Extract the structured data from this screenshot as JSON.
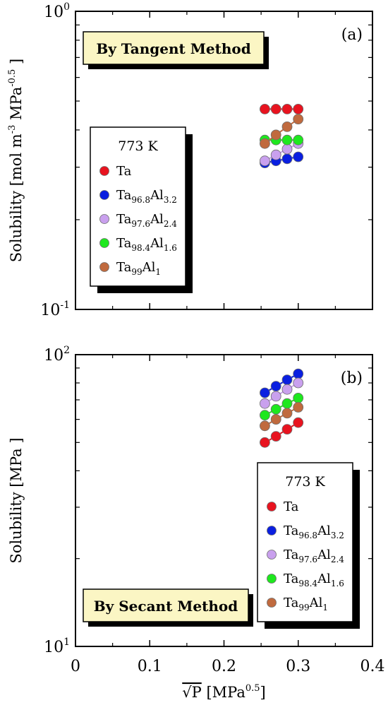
{
  "chart_data": [
    {
      "panel": "(a)",
      "type": "scatter",
      "method_label": "By Tangent Method",
      "ylabel": "Solubility [mol m^-3 MPa^-0.5]",
      "ylabel_parts": {
        "main": "Solubility [mol m",
        "sup1": "-3",
        "mid": " MPa",
        "sup2": "-0.5",
        "end": " ]"
      },
      "ylim": [
        0.1,
        1.0
      ],
      "yscale": "log",
      "y_ticks": [
        {
          "base": "10",
          "exp": "-1"
        },
        {
          "base": "10",
          "exp": "0"
        }
      ],
      "legend_title": "773 K",
      "legend_position": "middle-left",
      "series": [
        {
          "name": "Ta",
          "name_parts": [
            {
              "t": "Ta"
            }
          ],
          "color": "#e8131f",
          "x": [
            0.255,
            0.27,
            0.285,
            0.3
          ],
          "values": [
            0.47,
            0.47,
            0.47,
            0.47
          ]
        },
        {
          "name": "Ta96.8Al3.2",
          "name_parts": [
            {
              "t": "Ta"
            },
            {
              "sub": "96.8"
            },
            {
              "t": "Al"
            },
            {
              "sub": "3.2"
            }
          ],
          "color": "#0a1fe0",
          "x": [
            0.255,
            0.27,
            0.285,
            0.3
          ],
          "values": [
            0.31,
            0.315,
            0.32,
            0.325
          ]
        },
        {
          "name": "Ta97.6Al2.4",
          "name_parts": [
            {
              "t": "Ta"
            },
            {
              "sub": "97.6"
            },
            {
              "t": "Al"
            },
            {
              "sub": "2.4"
            }
          ],
          "color": "#c9a0ee",
          "x": [
            0.255,
            0.27,
            0.285,
            0.3
          ],
          "values": [
            0.315,
            0.33,
            0.345,
            0.36
          ]
        },
        {
          "name": "Ta98.4Al1.6",
          "name_parts": [
            {
              "t": "Ta"
            },
            {
              "sub": "98.4"
            },
            {
              "t": "Al"
            },
            {
              "sub": "1.6"
            }
          ],
          "color": "#1ee81e",
          "x": [
            0.255,
            0.27,
            0.285,
            0.3
          ],
          "values": [
            0.37,
            0.37,
            0.37,
            0.37
          ]
        },
        {
          "name": "Ta99Al1",
          "name_parts": [
            {
              "t": "Ta"
            },
            {
              "sub": "99"
            },
            {
              "t": "Al"
            },
            {
              "sub": "1"
            }
          ],
          "color": "#c06a3e",
          "x": [
            0.255,
            0.27,
            0.285,
            0.3
          ],
          "values": [
            0.36,
            0.385,
            0.41,
            0.435
          ]
        }
      ]
    },
    {
      "panel": "(b)",
      "type": "scatter",
      "method_label": "By Secant Method",
      "ylabel": "Solubility [MPa ]",
      "ylim": [
        10,
        100
      ],
      "yscale": "log",
      "y_ticks": [
        {
          "base": "10",
          "exp": "1"
        },
        {
          "base": "10",
          "exp": "2"
        }
      ],
      "legend_title": "773 K",
      "legend_position": "bottom-right",
      "series": [
        {
          "name": "Ta",
          "name_parts": [
            {
              "t": "Ta"
            }
          ],
          "color": "#e8131f",
          "x": [
            0.255,
            0.27,
            0.285,
            0.3
          ],
          "values": [
            50,
            52.5,
            55.5,
            58.5
          ]
        },
        {
          "name": "Ta96.8Al3.2",
          "name_parts": [
            {
              "t": "Ta"
            },
            {
              "sub": "96.8"
            },
            {
              "t": "Al"
            },
            {
              "sub": "3.2"
            }
          ],
          "color": "#0a1fe0",
          "x": [
            0.255,
            0.27,
            0.285,
            0.3
          ],
          "values": [
            74,
            78,
            82,
            86
          ]
        },
        {
          "name": "Ta97.6Al2.4",
          "name_parts": [
            {
              "t": "Ta"
            },
            {
              "sub": "97.6"
            },
            {
              "t": "Al"
            },
            {
              "sub": "2.4"
            }
          ],
          "color": "#c9a0ee",
          "x": [
            0.255,
            0.27,
            0.285,
            0.3
          ],
          "values": [
            68,
            72,
            76,
            80
          ]
        },
        {
          "name": "Ta98.4Al1.6",
          "name_parts": [
            {
              "t": "Ta"
            },
            {
              "sub": "98.4"
            },
            {
              "t": "Al"
            },
            {
              "sub": "1.6"
            }
          ],
          "color": "#1ee81e",
          "x": [
            0.255,
            0.27,
            0.285,
            0.3
          ],
          "values": [
            62,
            65,
            68,
            71
          ]
        },
        {
          "name": "Ta99Al1",
          "name_parts": [
            {
              "t": "Ta"
            },
            {
              "sub": "99"
            },
            {
              "t": "Al"
            },
            {
              "sub": "1"
            }
          ],
          "color": "#c06a3e",
          "x": [
            0.255,
            0.27,
            0.285,
            0.3
          ],
          "values": [
            57,
            60,
            63,
            66
          ]
        }
      ]
    }
  ],
  "x_axis": {
    "xlim": [
      0,
      0.4
    ],
    "ticks": [
      "0",
      "0.1",
      "0.2",
      "0.3",
      "0.4"
    ],
    "xlabel_sqrt": "√P",
    "xlabel_unit": " [MPa",
    "xlabel_sup": "0.5",
    "xlabel_close": "]"
  }
}
